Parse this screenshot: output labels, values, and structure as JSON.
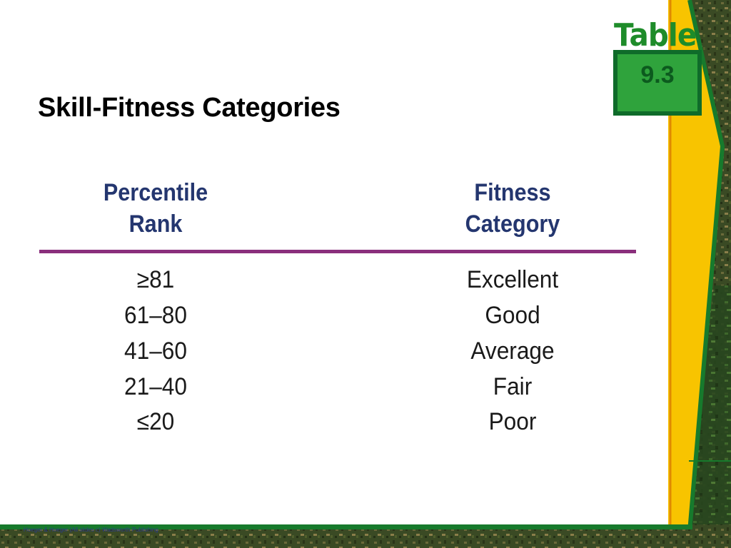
{
  "slide": {
    "title": "Skill-Fitness Categories",
    "table_tag": {
      "word": "Table",
      "number": "9.3"
    },
    "footer": "Hoeger & Hoeger (All slides c) Wadsworth Publishing"
  },
  "table": {
    "headers": {
      "rank": [
        "Percentile",
        "Rank"
      ],
      "category": [
        "Fitness",
        "Category"
      ]
    },
    "rows": [
      {
        "rank": "≥81",
        "category": "Excellent"
      },
      {
        "rank": "61–80",
        "category": "Good"
      },
      {
        "rank": "41–60",
        "category": "Average"
      },
      {
        "rank": "21–40",
        "category": "Fair"
      },
      {
        "rank": "≤20",
        "category": "Poor"
      }
    ]
  },
  "colors": {
    "header_text": "#24366f",
    "rule": "#8a2f7c",
    "tag_green": "#2fa33c",
    "band_yellow": "#f8c400",
    "band_green": "#177a2c"
  }
}
